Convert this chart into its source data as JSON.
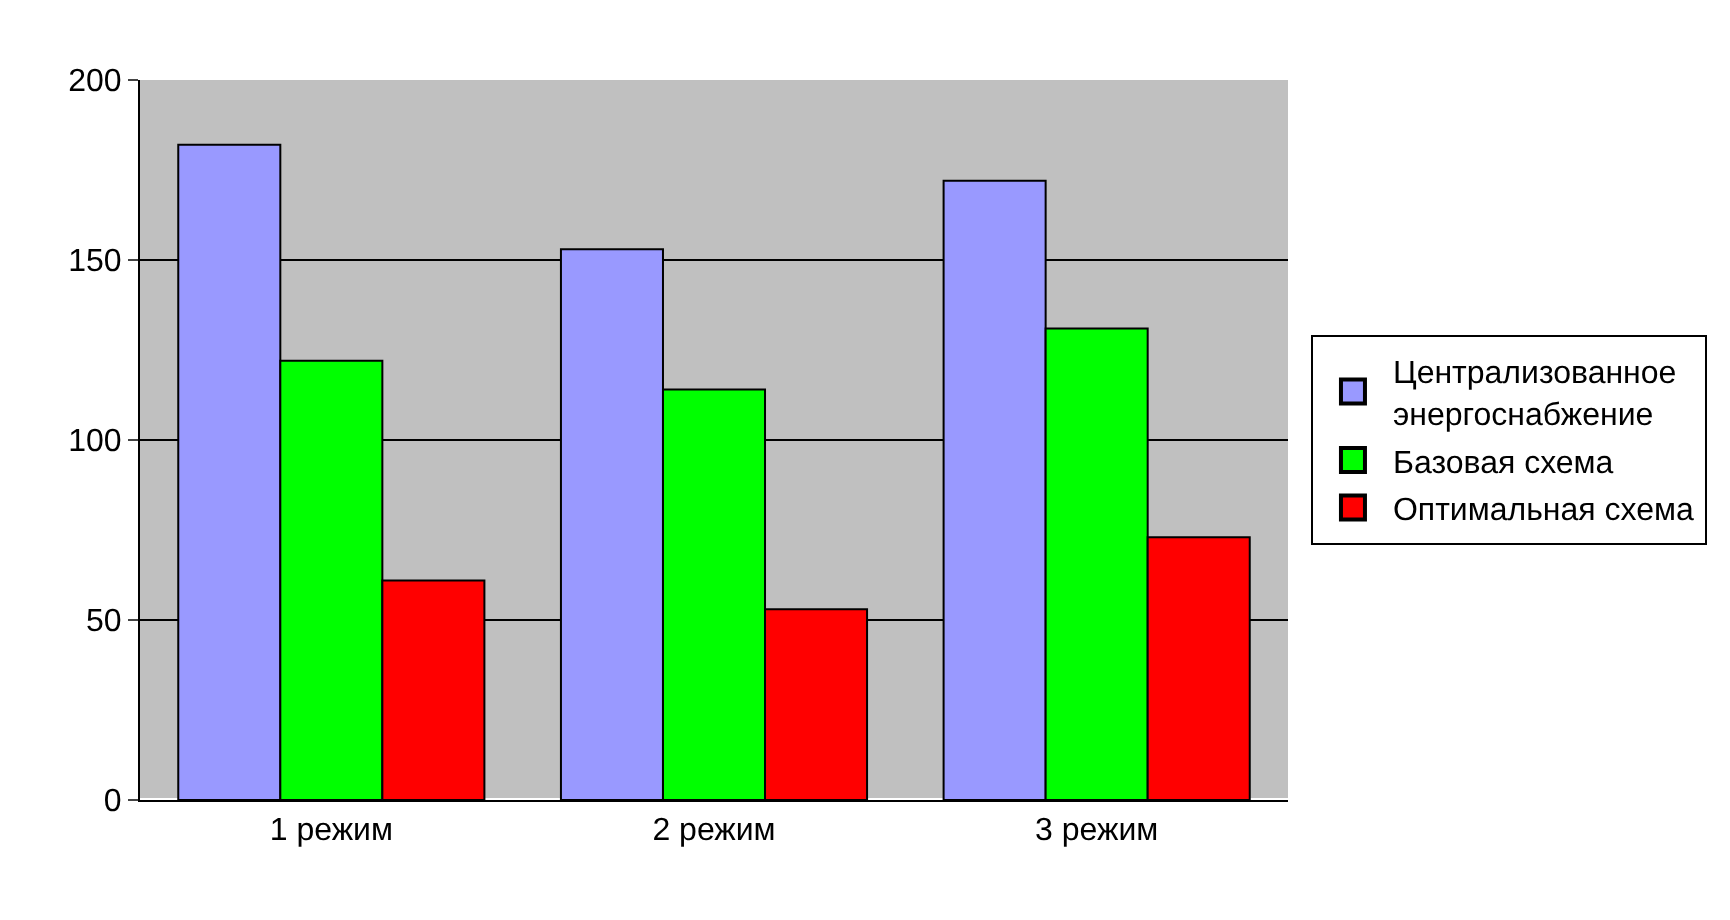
{
  "chart_data": {
    "type": "bar",
    "categories": [
      "1 режим",
      "2 режим",
      "3 режим"
    ],
    "series": [
      {
        "name": "Централизованное энергоснабжение",
        "color": "#9999ff",
        "values": [
          182,
          153,
          172
        ]
      },
      {
        "name": "Базовая схема",
        "color": "#00ff00",
        "values": [
          122,
          114,
          131
        ]
      },
      {
        "name": "Оптимальная схема",
        "color": "#ff0000",
        "values": [
          61,
          53,
          73
        ]
      }
    ],
    "ylim": [
      0,
      200
    ],
    "yticks": [
      0,
      50,
      100,
      150,
      200
    ],
    "grid": "y",
    "legend": "right"
  }
}
